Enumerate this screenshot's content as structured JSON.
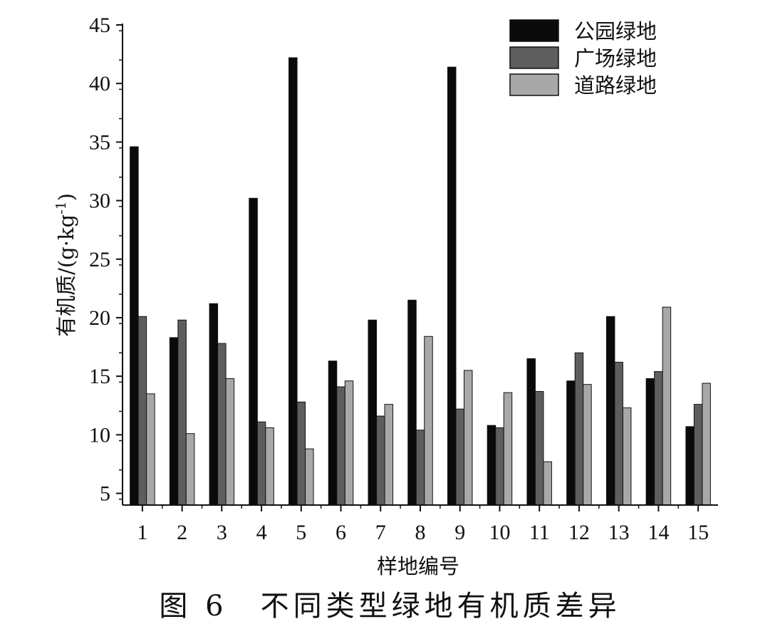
{
  "caption": "图 6　不同类型绿地有机质差异",
  "chart_data": {
    "type": "bar",
    "title": "",
    "xlabel": "样地编号",
    "ylabel": "有机质/(g·kg",
    "ylabel_sup": "-1",
    "ylabel_close": ")",
    "ylim": [
      4,
      45
    ],
    "yticks": [
      5,
      10,
      15,
      20,
      25,
      30,
      35,
      40,
      45
    ],
    "legend_position": "top-right",
    "categories": [
      "1",
      "2",
      "3",
      "4",
      "5",
      "6",
      "7",
      "8",
      "9",
      "10",
      "11",
      "12",
      "13",
      "14",
      "15"
    ],
    "series": [
      {
        "name": "公园绿地",
        "color": "#0a0a0a",
        "values": [
          34.6,
          18.3,
          21.2,
          30.2,
          42.2,
          16.3,
          19.8,
          21.5,
          41.4,
          10.8,
          16.5,
          14.6,
          20.1,
          14.8,
          10.7
        ]
      },
      {
        "name": "广场绿地",
        "color": "#5e5e5e",
        "values": [
          20.1,
          19.8,
          17.8,
          11.1,
          12.8,
          14.1,
          11.6,
          10.4,
          12.2,
          10.6,
          13.7,
          17.0,
          16.2,
          15.4,
          12.6
        ]
      },
      {
        "name": "道路绿地",
        "color": "#a8a8a8",
        "values": [
          13.5,
          10.1,
          14.8,
          10.6,
          8.8,
          14.6,
          12.6,
          18.4,
          15.5,
          13.6,
          7.7,
          14.3,
          12.3,
          20.9,
          14.4
        ]
      }
    ]
  }
}
